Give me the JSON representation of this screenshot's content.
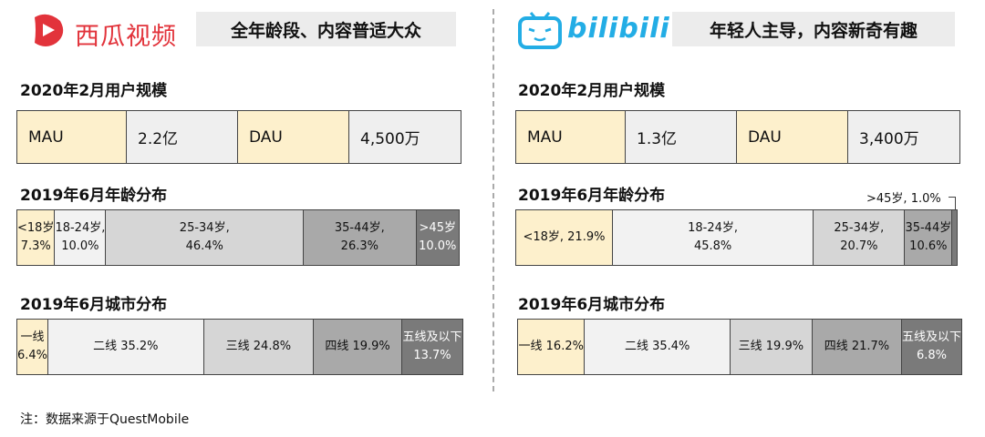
{
  "left": {
    "brand": "西瓜视频",
    "tagline": "全年龄段、内容普适大众",
    "user_title": "2020年2月用户规模",
    "mau_label": "MAU",
    "mau_value": "2.2亿",
    "dau_label": "DAU",
    "dau_value": "4,500万",
    "age_title": "2019年6月年龄分布",
    "age": [
      {
        "l1": "<18岁",
        "l2": "7.3%",
        "pct": 7.3
      },
      {
        "l1": "18-24岁,",
        "l2": "10.0%",
        "pct": 10.0
      },
      {
        "l1": "25-34岁,",
        "l2": "46.4%",
        "pct": 46.4
      },
      {
        "l1": "35-44岁,",
        "l2": "26.3%",
        "pct": 26.3
      },
      {
        "l1": ">45岁",
        "l2": "10.0%",
        "pct": 10.0
      }
    ],
    "city_title": "2019年6月城市分布",
    "city": [
      {
        "l1": "一线",
        "l2": "6.4%",
        "pct": 6.4
      },
      {
        "l1": "二线 35.2%",
        "l2": "",
        "pct": 35.2
      },
      {
        "l1": "三线 24.8%",
        "l2": "",
        "pct": 24.8
      },
      {
        "l1": "四线 19.9%",
        "l2": "",
        "pct": 19.9
      },
      {
        "l1": "五线及以下",
        "l2": "13.7%",
        "pct": 13.7
      }
    ]
  },
  "right": {
    "brand": "bilibili",
    "tagline": "年轻人主导，内容新奇有趣",
    "user_title": "2020年2月用户规模",
    "mau_label": "MAU",
    "mau_value": "1.3亿",
    "dau_label": "DAU",
    "dau_value": "3,400万",
    "age_title": "2019年6月年龄分布",
    "age_callout": ">45岁, 1.0%",
    "age": [
      {
        "l1": "<18岁, 21.9%",
        "l2": "",
        "pct": 21.9
      },
      {
        "l1": "18-24岁,",
        "l2": "45.8%",
        "pct": 45.8
      },
      {
        "l1": "25-34岁,",
        "l2": "20.7%",
        "pct": 20.7
      },
      {
        "l1": "35-44岁",
        "l2": "10.6%",
        "pct": 10.6
      },
      {
        "l1": "",
        "l2": "",
        "pct": 1.0
      }
    ],
    "city_title": "2019年6月城市分布",
    "city": [
      {
        "l1": "一线 16.2%",
        "l2": "",
        "pct": 16.2
      },
      {
        "l1": "二线 35.4%",
        "l2": "",
        "pct": 35.4
      },
      {
        "l1": "三线 19.9%",
        "l2": "",
        "pct": 19.9
      },
      {
        "l1": "四线 21.7%",
        "l2": "",
        "pct": 21.7
      },
      {
        "l1": "五线及以下",
        "l2": "6.8%",
        "pct": 6.8
      }
    ]
  },
  "note": "注：数据来源于QuestMobile",
  "colors": {
    "brand_red": "#e2333b",
    "bili_blue": "#23ade5",
    "yellow": "#fdf0cc"
  }
}
